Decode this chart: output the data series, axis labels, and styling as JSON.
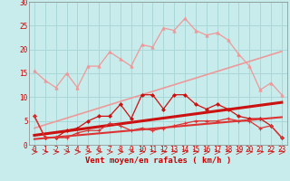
{
  "x": [
    0,
    1,
    2,
    3,
    4,
    5,
    6,
    7,
    8,
    9,
    10,
    11,
    12,
    13,
    14,
    15,
    16,
    17,
    18,
    19,
    20,
    21,
    22,
    23
  ],
  "background_color": "#c8ecec",
  "grid_color": "#aad8d8",
  "xlabel": "Vent moyen/en rafales ( km/h )",
  "xlabel_color": "#cc0000",
  "xlabel_fontsize": 6.5,
  "tick_color": "#cc0000",
  "tick_fontsize": 5.5,
  "ylim": [
    0,
    30
  ],
  "yticks": [
    0,
    5,
    10,
    15,
    20,
    25,
    30
  ],
  "rafales_values": [
    15.5,
    13.5,
    12.0,
    15.0,
    12.0,
    16.5,
    16.5,
    19.5,
    18.0,
    16.5,
    21.0,
    20.5,
    24.5,
    24.0,
    26.5,
    24.0,
    23.0,
    23.5,
    22.0,
    19.0,
    16.5,
    11.5,
    13.0,
    10.5
  ],
  "vent_moy_values": [
    6.0,
    1.5,
    1.5,
    3.0,
    3.5,
    5.0,
    6.0,
    6.0,
    8.5,
    5.5,
    10.5,
    10.5,
    7.5,
    10.5,
    10.5,
    8.5,
    7.5,
    8.5,
    7.5,
    6.0,
    5.5,
    5.5,
    4.0,
    1.5
  ],
  "vent_min_values": [
    6.0,
    1.5,
    1.5,
    1.5,
    2.5,
    3.0,
    3.0,
    4.5,
    4.0,
    3.0,
    3.5,
    3.0,
    3.5,
    4.0,
    4.5,
    5.0,
    5.0,
    5.0,
    5.5,
    5.0,
    5.0,
    3.5,
    4.0,
    1.5
  ],
  "rafales_trend": [
    3.5,
    4.2,
    4.9,
    5.6,
    6.3,
    7.0,
    7.7,
    8.4,
    9.1,
    9.8,
    10.5,
    11.2,
    11.9,
    12.6,
    13.3,
    14.0,
    14.7,
    15.4,
    16.1,
    16.8,
    17.5,
    18.2,
    18.9,
    19.6
  ],
  "vent_moy_trend": [
    2.0,
    2.3,
    2.6,
    2.9,
    3.2,
    3.5,
    3.8,
    4.1,
    4.4,
    4.7,
    5.0,
    5.3,
    5.6,
    5.9,
    6.2,
    6.5,
    6.8,
    7.1,
    7.4,
    7.7,
    8.0,
    8.3,
    8.6,
    8.9
  ],
  "vent_min_trend": [
    1.2,
    1.4,
    1.6,
    1.8,
    2.0,
    2.2,
    2.4,
    2.6,
    2.8,
    3.0,
    3.2,
    3.4,
    3.6,
    3.8,
    4.0,
    4.2,
    4.4,
    4.6,
    4.8,
    5.0,
    5.2,
    5.4,
    5.6,
    5.8
  ]
}
